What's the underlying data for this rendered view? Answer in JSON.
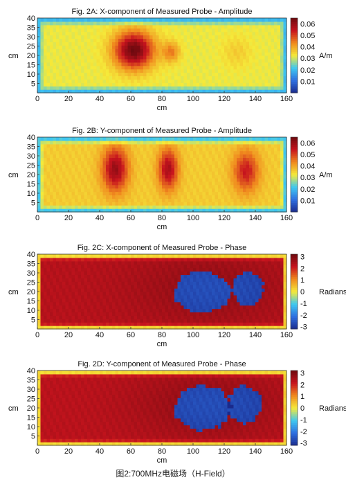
{
  "caption": "图2:700MHz电磁场（H-Field）",
  "colors": {
    "colormap": [
      "#1a2a8c",
      "#2f6fe0",
      "#3fc8f0",
      "#f5ea3a",
      "#f08a1e",
      "#c8141e",
      "#6e0a0f"
    ],
    "axis": "#333333"
  },
  "chart_data": [
    {
      "type": "heatmap",
      "title": "Fig. 2A: X-component of Measured Probe - Amplitude",
      "xlabel": "cm",
      "ylabel": "cm",
      "xlim": [
        0,
        160
      ],
      "ylim": [
        0,
        40
      ],
      "xticks": [
        "0",
        "20",
        "40",
        "60",
        "80",
        "100",
        "120",
        "140",
        "160"
      ],
      "yticks": [
        "5",
        "10",
        "15",
        "20",
        "25",
        "30",
        "35",
        "40"
      ],
      "colorbar": {
        "label": "A/m",
        "range": [
          0.0,
          0.065
        ],
        "ticks": [
          "0.01",
          "0.02",
          "0.03",
          "0.04",
          "0.05",
          "0.06"
        ]
      },
      "field": {
        "base": 0.032,
        "edge_x_cm": 4,
        "edge_y_cm": 4,
        "hotspots": [
          {
            "x": 62,
            "y": 23,
            "rx": 14,
            "ry": 11,
            "amp": 0.033
          },
          {
            "x": 86,
            "y": 22,
            "rx": 6,
            "ry": 6,
            "amp": 0.012
          },
          {
            "x": 128,
            "y": 22,
            "rx": 10,
            "ry": 9,
            "amp": 0.004
          }
        ]
      }
    },
    {
      "type": "heatmap",
      "title": "Fig. 2B: Y-component of Measured Probe - Amplitude",
      "xlabel": "cm",
      "ylabel": "cm",
      "xlim": [
        0,
        160
      ],
      "ylim": [
        0,
        40
      ],
      "xticks": [
        "0",
        "20",
        "40",
        "60",
        "80",
        "100",
        "120",
        "140",
        "160"
      ],
      "yticks": [
        "5",
        "10",
        "15",
        "20",
        "25",
        "30",
        "35",
        "40"
      ],
      "colorbar": {
        "label": "A/m",
        "range": [
          0.0,
          0.065
        ],
        "ticks": [
          "0.01",
          "0.02",
          "0.03",
          "0.04",
          "0.05",
          "0.06"
        ]
      },
      "field": {
        "base": 0.036,
        "edge_x_cm": 4,
        "edge_y_cm": 4,
        "hotspots": [
          {
            "x": 50,
            "y": 23,
            "rx": 9,
            "ry": 13,
            "amp": 0.024
          },
          {
            "x": 84,
            "y": 23,
            "rx": 7,
            "ry": 12,
            "amp": 0.022
          },
          {
            "x": 134,
            "y": 22,
            "rx": 9,
            "ry": 12,
            "amp": 0.018
          }
        ]
      }
    },
    {
      "type": "heatmap",
      "title": "Fig. 2C: X-component of Measured Probe - Phase",
      "xlabel": "cm",
      "ylabel": "cm",
      "xlim": [
        0,
        160
      ],
      "ylim": [
        0,
        40
      ],
      "xticks": [
        "0",
        "20",
        "40",
        "60",
        "80",
        "100",
        "120",
        "140",
        "160"
      ],
      "yticks": [
        "5",
        "10",
        "15",
        "20",
        "25",
        "30",
        "35",
        "40"
      ],
      "colorbar": {
        "label": "Radians",
        "range": [
          -3.2,
          3.2
        ],
        "ticks": [
          "-3",
          "-2",
          "-1",
          "0",
          "1",
          "2",
          "3"
        ]
      },
      "field": {
        "base": 2.35,
        "edge_x_cm": 3,
        "edge_y_cm": 3,
        "hotspots": [
          {
            "x": 106,
            "y": 20,
            "rx": 18,
            "ry": 11,
            "amp": -5.4,
            "hard": true
          },
          {
            "x": 135,
            "y": 22,
            "rx": 10,
            "ry": 9,
            "amp": -5.4,
            "hard": true
          },
          {
            "x": 110,
            "y": 22,
            "rx": 55,
            "ry": 22,
            "amp": 0.4
          }
        ]
      }
    },
    {
      "type": "heatmap",
      "title": "Fig. 2D: Y-component of Measured Probe - Phase",
      "xlabel": "cm",
      "ylabel": "cm",
      "xlim": [
        0,
        160
      ],
      "ylim": [
        0,
        40
      ],
      "xticks": [
        "0",
        "20",
        "40",
        "60",
        "80",
        "100",
        "120",
        "140",
        "160"
      ],
      "yticks": [
        "5",
        "10",
        "15",
        "20",
        "25",
        "30",
        "35",
        "40"
      ],
      "colorbar": {
        "label": "Radians",
        "range": [
          -3.2,
          3.2
        ],
        "ticks": [
          "-3",
          "-2",
          "-1",
          "0",
          "1",
          "2",
          "3"
        ]
      },
      "field": {
        "base": 2.3,
        "edge_x_cm": 3,
        "edge_y_cm": 3,
        "hotspots": [
          {
            "x": 106,
            "y": 20,
            "rx": 18,
            "ry": 12,
            "amp": -5.4,
            "hard": true
          },
          {
            "x": 133,
            "y": 22,
            "rx": 11,
            "ry": 10,
            "amp": -5.4,
            "hard": true
          },
          {
            "x": 110,
            "y": 22,
            "rx": 55,
            "ry": 22,
            "amp": 0.45
          }
        ]
      }
    }
  ]
}
